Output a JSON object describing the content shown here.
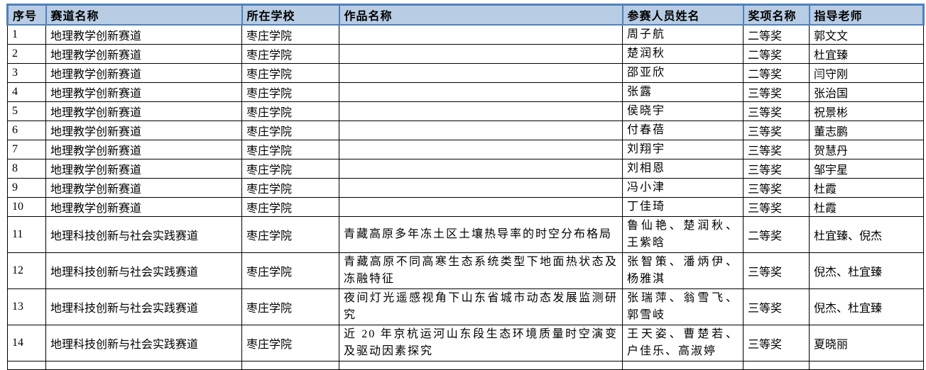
{
  "table": {
    "columns": [
      {
        "key": "index",
        "label": "序号"
      },
      {
        "key": "track",
        "label": "赛道名称"
      },
      {
        "key": "school",
        "label": "所在学校"
      },
      {
        "key": "work",
        "label": "作品名称"
      },
      {
        "key": "participants",
        "label": "参赛人员姓名"
      },
      {
        "key": "award",
        "label": "奖项名称"
      },
      {
        "key": "teacher",
        "label": "指导老师"
      }
    ],
    "rows": [
      [
        "1",
        "地理教学创新赛道",
        "枣庄学院",
        "",
        "周子航",
        "二等奖",
        "郭文文"
      ],
      [
        "2",
        "地理教学创新赛道",
        "枣庄学院",
        "",
        "楚润秋",
        "二等奖",
        "杜宜臻"
      ],
      [
        "3",
        "地理教学创新赛道",
        "枣庄学院",
        "",
        "邵亚欣",
        "二等奖",
        "闫守刚"
      ],
      [
        "4",
        "地理教学创新赛道",
        "枣庄学院",
        "",
        "张露",
        "三等奖",
        "张治国"
      ],
      [
        "5",
        "地理教学创新赛道",
        "枣庄学院",
        "",
        "侯晓宇",
        "三等奖",
        "祝景彬"
      ],
      [
        "6",
        "地理教学创新赛道",
        "枣庄学院",
        "",
        "付春蓓",
        "三等奖",
        "董志鹏"
      ],
      [
        "7",
        "地理教学创新赛道",
        "枣庄学院",
        "",
        "刘翔宇",
        "三等奖",
        "贺慧丹"
      ],
      [
        "8",
        "地理教学创新赛道",
        "枣庄学院",
        "",
        "刘相恩",
        "三等奖",
        "邹宇星"
      ],
      [
        "9",
        "地理教学创新赛道",
        "枣庄学院",
        "",
        "冯小津",
        "三等奖",
        "杜霞"
      ],
      [
        "10",
        "地理教学创新赛道",
        "枣庄学院",
        "",
        "丁佳琦",
        "三等奖",
        "杜霞"
      ],
      [
        "11",
        "地理科技创新与社会实践赛道",
        "枣庄学院",
        "青藏高原多年冻土区土壤热导率的时空分布格局",
        "鲁仙艳、楚润秋、王紫晗",
        "二等奖",
        "杜宜臻、倪杰"
      ],
      [
        "12",
        "地理科技创新与社会实践赛道",
        "枣庄学院",
        "青藏高原不同高寒生态系统类型下地面热状态及冻融特征",
        "张智策、潘炳伊、杨雅淇",
        "三等奖",
        "倪杰、杜宜臻"
      ],
      [
        "13",
        "地理科技创新与社会实践赛道",
        "枣庄学院",
        "夜间灯光遥感视角下山东省城市动态发展监测研究",
        "张瑞萍、翁雪飞、郭雪岐",
        "三等奖",
        "倪杰、杜宜臻"
      ],
      [
        "14",
        "地理科技创新与社会实践赛道",
        "枣庄学院",
        "近 20 年京杭运河山东段生态环境质量时空演变及驱动因素探究",
        "王天姿、曹楚若、户佳乐、高淑婷",
        "三等奖",
        "夏晓丽"
      ]
    ],
    "colors": {
      "header_bg": "#b8cce4",
      "header_border": "#4f81bd",
      "grid": "#000000"
    }
  }
}
